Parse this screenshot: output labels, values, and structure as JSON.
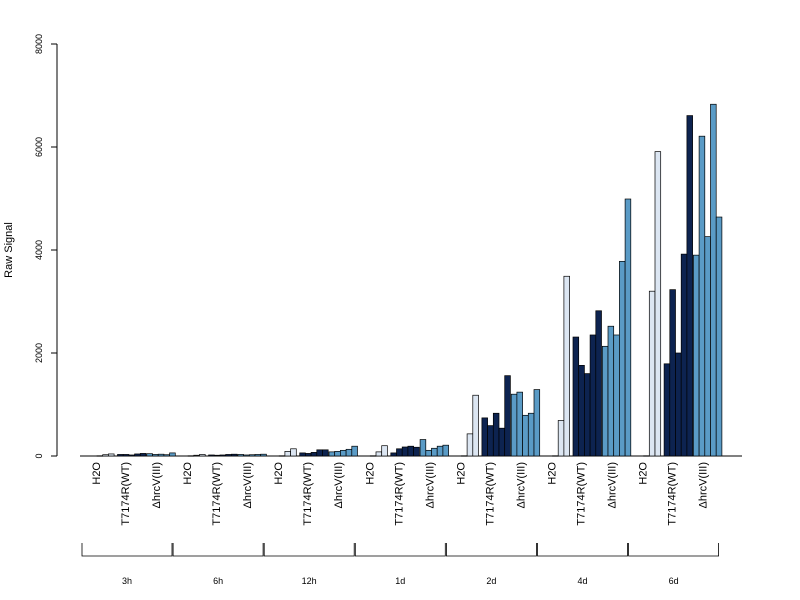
{
  "chart_data": {
    "type": "bar",
    "ylabel": "Raw Signal",
    "ylim": [
      0,
      8000
    ],
    "yticks": [
      "0",
      "2000",
      "4000",
      "6000",
      "8000"
    ],
    "treatments": [
      "H2O",
      "T7174R(WT)",
      "ΔhrcV(III)"
    ],
    "timepoints": [
      "3h",
      "6h",
      "12h",
      "1d",
      "2d",
      "4d",
      "6d"
    ],
    "colors": {
      "H2O": "#dce6f2",
      "T7174R(WT)": "#0d2350",
      "ΔhrcV(III)": "#5a9bc6"
    },
    "groups": [
      {
        "time": "3h",
        "H2O": [
          5,
          25,
          40
        ],
        "T7174R(WT)": [
          30,
          30,
          20,
          40,
          50
        ],
        "ΔhrcV(III)": [
          45,
          30,
          35,
          25,
          60
        ]
      },
      {
        "time": "6h",
        "H2O": [
          5,
          15,
          30
        ],
        "T7174R(WT)": [
          20,
          15,
          20,
          30,
          35
        ],
        "ΔhrcV(III)": [
          30,
          20,
          25,
          30,
          35
        ]
      },
      {
        "time": "12h",
        "H2O": [
          5,
          90,
          140
        ],
        "T7174R(WT)": [
          60,
          50,
          70,
          120,
          120
        ],
        "ΔhrcV(III)": [
          80,
          90,
          110,
          130,
          190
        ]
      },
      {
        "time": "1d",
        "H2O": [
          5,
          80,
          200
        ],
        "T7174R(WT)": [
          60,
          140,
          175,
          190,
          170
        ],
        "ΔhrcV(III)": [
          320,
          110,
          150,
          190,
          210
        ]
      },
      {
        "time": "2d",
        "H2O": [
          5,
          430,
          1180
        ],
        "T7174R(WT)": [
          740,
          590,
          830,
          540,
          1560
        ],
        "ΔhrcV(III)": [
          1200,
          1240,
          790,
          830,
          1290
        ]
      },
      {
        "time": "4d",
        "H2O": [
          5,
          690,
          3490
        ],
        "T7174R(WT)": [
          2310,
          1760,
          1600,
          2350,
          2820
        ],
        "ΔhrcV(III)": [
          2130,
          2520,
          2350,
          3780,
          4990
        ]
      },
      {
        "time": "6d",
        "H2O": [
          5,
          3200,
          5910
        ],
        "T7174R(WT)": [
          1790,
          3230,
          2000,
          3920,
          6610
        ],
        "ΔhrcV(III)": [
          3900,
          6210,
          4260,
          6830,
          4640
        ]
      }
    ]
  }
}
